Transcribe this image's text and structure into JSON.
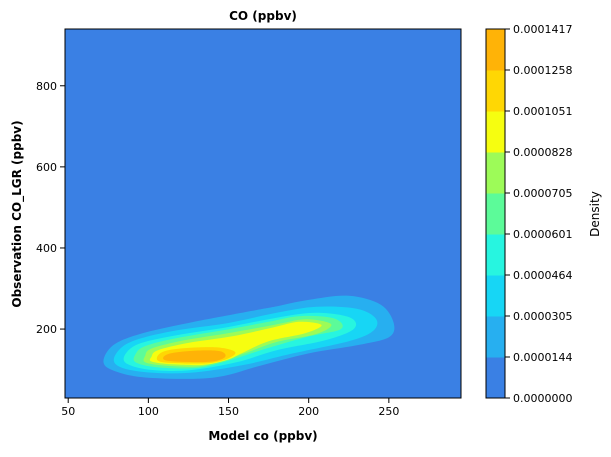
{
  "chart_data": {
    "type": "heatmap",
    "title": "CO (ppbv)",
    "xlabel": "Model co (ppbv)",
    "ylabel": "Observation CO_LGR (ppbv)",
    "xlim": [
      48,
      295
    ],
    "ylim": [
      30,
      940
    ],
    "x_ticks": [
      50,
      100,
      150,
      200,
      250
    ],
    "y_ticks": [
      200,
      400,
      600,
      800
    ],
    "colorbar": {
      "label": "Density",
      "levels": [
        "0.0000000",
        "0.0000144",
        "0.0000305",
        "0.0000464",
        "0.0000601",
        "0.0000705",
        "0.0000828",
        "0.0001051",
        "0.0001258",
        "0.0001417"
      ],
      "colors": [
        "#3a80e4",
        "#27aff0",
        "#17d6f5",
        "#27f5e0",
        "#5cfb99",
        "#9dfb58",
        "#f6fe10",
        "#ffd704",
        "#ffb307"
      ]
    },
    "density_contours": [
      {
        "level": 1,
        "points": [
          [
            72,
            118
          ],
          [
            80,
            95
          ],
          [
            100,
            80
          ],
          [
            140,
            80
          ],
          [
            170,
            110
          ],
          [
            200,
            140
          ],
          [
            230,
            160
          ],
          [
            250,
            180
          ],
          [
            253,
            215
          ],
          [
            245,
            260
          ],
          [
            225,
            282
          ],
          [
            200,
            272
          ],
          [
            180,
            256
          ],
          [
            165,
            245
          ],
          [
            125,
            215
          ],
          [
            95,
            188
          ],
          [
            78,
            160
          ]
        ]
      },
      {
        "level": 2,
        "points": [
          [
            80,
            112
          ],
          [
            95,
            95
          ],
          [
            125,
            92
          ],
          [
            160,
            112
          ],
          [
            190,
            140
          ],
          [
            225,
            170
          ],
          [
            240,
            195
          ],
          [
            242,
            225
          ],
          [
            230,
            250
          ],
          [
            205,
            255
          ],
          [
            180,
            240
          ],
          [
            150,
            215
          ],
          [
            115,
            195
          ],
          [
            90,
            170
          ],
          [
            80,
            140
          ]
        ]
      },
      {
        "level": 3,
        "points": [
          [
            86,
            116
          ],
          [
            100,
            100
          ],
          [
            125,
            98
          ],
          [
            155,
            118
          ],
          [
            180,
            148
          ],
          [
            210,
            172
          ],
          [
            228,
            200
          ],
          [
            226,
            228
          ],
          [
            205,
            240
          ],
          [
            180,
            228
          ],
          [
            150,
            205
          ],
          [
            118,
            185
          ],
          [
            95,
            165
          ],
          [
            86,
            140
          ]
        ]
      },
      {
        "level": 4,
        "points": [
          [
            92,
            118
          ],
          [
            105,
            106
          ],
          [
            130,
            104
          ],
          [
            150,
            122
          ],
          [
            172,
            150
          ],
          [
            198,
            180
          ],
          [
            220,
            200
          ],
          [
            216,
            226
          ],
          [
            195,
            232
          ],
          [
            175,
            218
          ],
          [
            148,
            198
          ],
          [
            118,
            178
          ],
          [
            98,
            158
          ],
          [
            92,
            138
          ]
        ]
      },
      {
        "level": 5,
        "points": [
          [
            98,
            118
          ],
          [
            110,
            110
          ],
          [
            132,
            108
          ],
          [
            148,
            124
          ],
          [
            160,
            140
          ],
          [
            180,
            168
          ],
          [
            205,
            188
          ],
          [
            214,
            212
          ],
          [
            198,
            224
          ],
          [
            178,
            210
          ],
          [
            150,
            190
          ],
          [
            122,
            172
          ],
          [
            102,
            152
          ],
          [
            98,
            134
          ]
        ]
      },
      {
        "level": 6,
        "points": [
          [
            102,
            120
          ],
          [
            115,
            113
          ],
          [
            135,
            112
          ],
          [
            150,
            125
          ],
          [
            158,
            140
          ],
          [
            175,
            170
          ],
          [
            198,
            190
          ],
          [
            208,
            210
          ],
          [
            194,
            218
          ],
          [
            178,
            204
          ],
          [
            152,
            182
          ],
          [
            125,
            166
          ],
          [
            106,
            148
          ],
          [
            102,
            132
          ]
        ]
      },
      {
        "level": 7,
        "points": [
          [
            106,
            122
          ],
          [
            118,
            116
          ],
          [
            138,
            116
          ],
          [
            150,
            128
          ],
          [
            154,
            144
          ],
          [
            142,
            155
          ],
          [
            120,
            152
          ],
          [
            108,
            142
          ]
        ]
      },
      {
        "level": 8,
        "points": [
          [
            110,
            124
          ],
          [
            122,
            119
          ],
          [
            140,
            120
          ],
          [
            148,
            132
          ],
          [
            144,
            146
          ],
          [
            126,
            146
          ],
          [
            112,
            138
          ]
        ]
      }
    ]
  }
}
